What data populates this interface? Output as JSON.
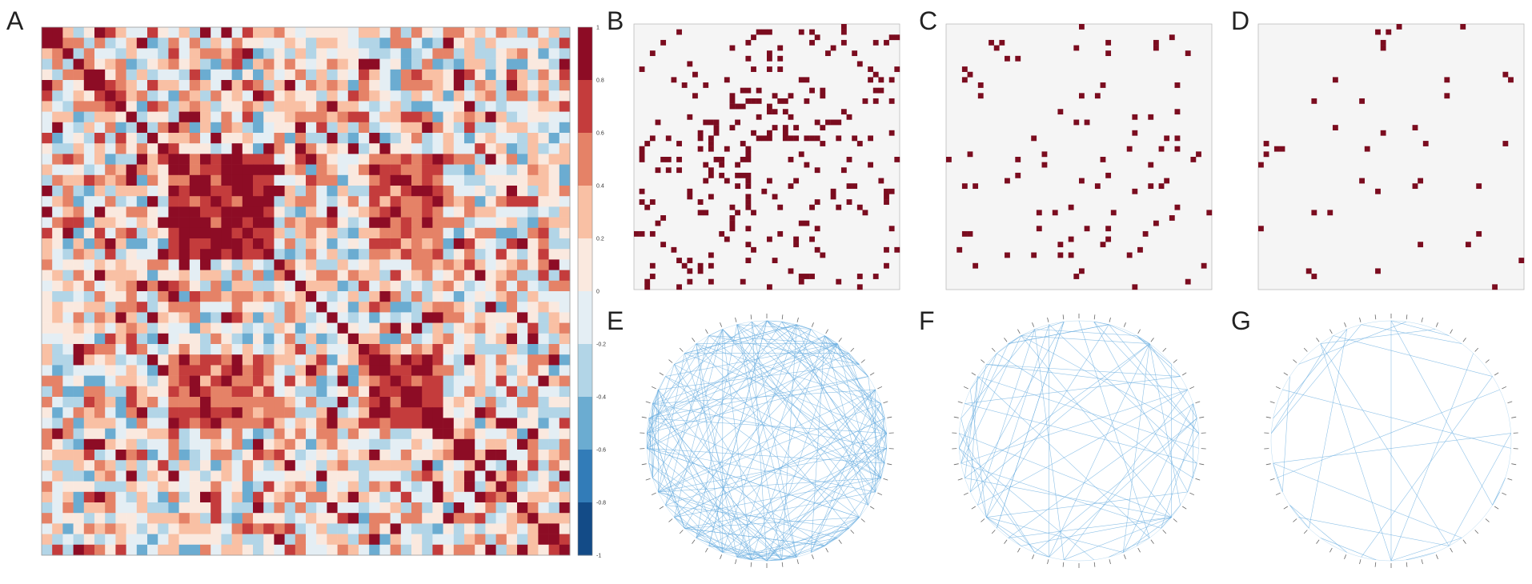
{
  "panels": {
    "A": "A",
    "B": "B",
    "C": "C",
    "D": "D",
    "E": "E",
    "F": "F",
    "G": "G"
  },
  "chart_data": [
    {
      "panel": "A",
      "type": "heatmap",
      "matrix_size": 50,
      "colormap": "RdBu_r",
      "colorbar": {
        "ticks": [
          "1",
          "0.8",
          "0.6",
          "0.4",
          "0.2",
          "0",
          "-0.2",
          "-0.4",
          "-0.6",
          "-0.8",
          "-1"
        ],
        "range": [
          -1,
          1
        ]
      },
      "diagonal_value": 1,
      "colors": {
        "high": "#67001f",
        "mid_high": "#b2182b",
        "low": "#053061",
        "mid_low": "#2166ac",
        "neutral": "#f7f7f7"
      }
    },
    {
      "panel": "B",
      "type": "heatmap",
      "matrix_size": 50,
      "binary": true,
      "density": 0.09,
      "colors": {
        "on": "#7b0c1f",
        "off": "#f5f5f5"
      }
    },
    {
      "panel": "C",
      "type": "heatmap",
      "matrix_size": 50,
      "binary": true,
      "density": 0.04,
      "colors": {
        "on": "#7b0c1f",
        "off": "#f5f5f5"
      }
    },
    {
      "panel": "D",
      "type": "heatmap",
      "matrix_size": 50,
      "binary": true,
      "density": 0.018,
      "colors": {
        "on": "#7b0c1f",
        "off": "#f5f5f5"
      }
    },
    {
      "panel": "E",
      "type": "network",
      "layout": "circular",
      "nodes": 50,
      "edges_approx": 200,
      "edge_color": "#6aaee0"
    },
    {
      "panel": "F",
      "type": "network",
      "layout": "circular",
      "nodes": 50,
      "edges_approx": 80,
      "edge_color": "#6aaee0"
    },
    {
      "panel": "G",
      "type": "network",
      "layout": "circular",
      "nodes": 50,
      "edges_approx": 30,
      "edge_color": "#6aaee0"
    }
  ]
}
